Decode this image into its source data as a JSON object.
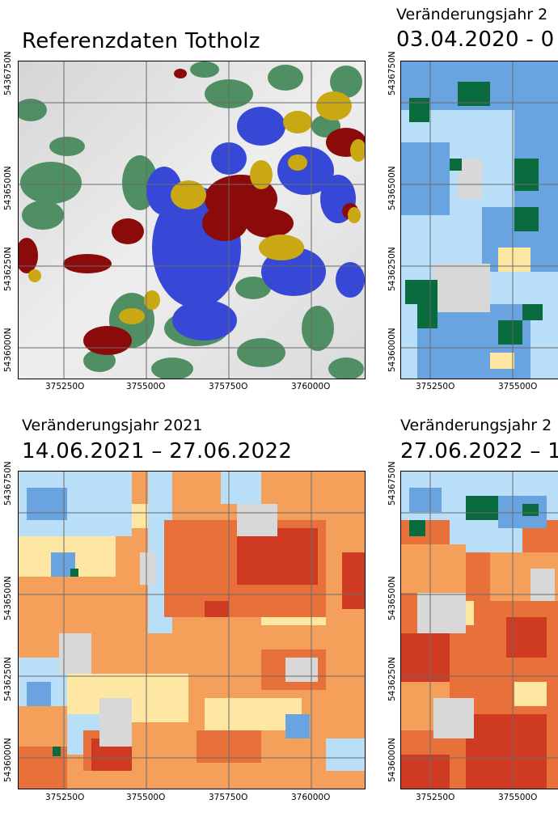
{
  "panels": {
    "ref": {
      "title": "Referenzdaten Totholz"
    },
    "y2020": {
      "title_line1": "Veränderungsjahr 2",
      "title_line2": "03.04.2020 - 0"
    },
    "y2021": {
      "title_line1": "Veränderungsjahr 2021",
      "title_line2": "14.06.2021 – 27.06.2022"
    },
    "y2022": {
      "title_line1": "Veränderungsjahr 2",
      "title_line2": "27.06.2022 – 1"
    }
  },
  "axes": {
    "y_ticks": [
      "5436750N",
      "5436500N",
      "5436250N",
      "5436000N"
    ],
    "x_ticks_full": [
      "375250O",
      "375500O",
      "375750O",
      "376000O"
    ],
    "x_ticks_cut": [
      "375250O",
      "375500O"
    ]
  },
  "colors": {
    "hillshade": "#e6e6e6",
    "ref_green": "#4f8f63",
    "ref_blue": "#3848d6",
    "ref_darkred": "#8b0a0a",
    "ref_gold": "#c9a814",
    "ch_darkgreen": "#0a6b3e",
    "ch_blue": "#6aa4e0",
    "ch_lightblue": "#b8def8",
    "ch_lightyellow": "#fde7a3",
    "ch_orange": "#f5a05a",
    "ch_darkorange": "#e8703a",
    "ch_red": "#cf3a22"
  }
}
